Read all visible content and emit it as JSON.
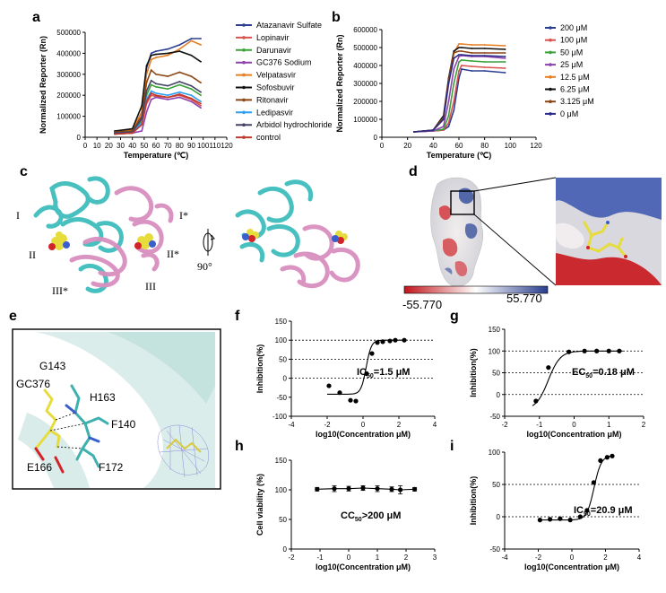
{
  "panels": {
    "a": "a",
    "b": "b",
    "c": "c",
    "d": "d",
    "e": "e",
    "f": "f",
    "g": "g",
    "h": "h",
    "i": "i"
  },
  "colors": {
    "protein_cyan": "#3fbdbd",
    "protein_pink": "#d98fbf",
    "ligand": "#e6dc3c",
    "esp_red": "#d2232a",
    "esp_blue": "#2f4a9a"
  },
  "chart_data": [
    {
      "panel": "a",
      "type": "line",
      "xlabel": "Temperature (℃)",
      "ylabel": "Normalized Reporter (Rn)",
      "xlim": [
        0,
        120
      ],
      "ylim": [
        0,
        500000
      ],
      "xticks": [
        "0",
        "10",
        "20",
        "30",
        "40",
        "50",
        "60",
        "70",
        "80",
        "90",
        "100",
        "110",
        "120"
      ],
      "yticks": [
        "0",
        "100000",
        "200000",
        "300000",
        "400000",
        "500000"
      ],
      "legend_position": "right",
      "series": [
        {
          "name": "Atazanavir Sulfate",
          "color": "#2c3e91",
          "x": [
            25,
            40,
            48,
            52,
            56,
            60,
            70,
            80,
            90,
            98
          ],
          "values": [
            20000,
            30000,
            120000,
            330000,
            400000,
            410000,
            420000,
            440000,
            470000,
            470000
          ]
        },
        {
          "name": "Lopinavir",
          "color": "#d9534f",
          "x": [
            25,
            40,
            48,
            52,
            56,
            60,
            70,
            80,
            90,
            98
          ],
          "values": [
            15000,
            20000,
            60000,
            160000,
            200000,
            195000,
            190000,
            200000,
            180000,
            150000
          ]
        },
        {
          "name": "Darunavir",
          "color": "#3aa13a",
          "x": [
            25,
            40,
            48,
            52,
            56,
            60,
            70,
            80,
            90,
            98
          ],
          "values": [
            20000,
            25000,
            80000,
            200000,
            250000,
            240000,
            230000,
            250000,
            230000,
            200000
          ]
        },
        {
          "name": "GC376 Sodium",
          "color": "#8e44ad",
          "x": [
            25,
            40,
            48,
            52,
            56,
            60,
            70,
            80,
            90,
            98
          ],
          "values": [
            15000,
            20000,
            30000,
            120000,
            180000,
            190000,
            180000,
            190000,
            170000,
            140000
          ]
        },
        {
          "name": "Velpatasvir",
          "color": "#e67e22",
          "x": [
            25,
            40,
            48,
            52,
            56,
            60,
            70,
            80,
            90,
            98
          ],
          "values": [
            25000,
            35000,
            120000,
            300000,
            370000,
            380000,
            390000,
            420000,
            460000,
            440000
          ]
        },
        {
          "name": "Sofosbuvir",
          "color": "#111111",
          "x": [
            25,
            40,
            48,
            52,
            56,
            60,
            70,
            80,
            90,
            98
          ],
          "values": [
            30000,
            40000,
            150000,
            340000,
            390000,
            395000,
            400000,
            410000,
            390000,
            360000
          ]
        },
        {
          "name": "Ritonavir",
          "color": "#8b4513",
          "x": [
            25,
            40,
            48,
            52,
            56,
            60,
            70,
            80,
            90,
            98
          ],
          "values": [
            25000,
            30000,
            100000,
            260000,
            320000,
            300000,
            290000,
            310000,
            290000,
            260000
          ]
        },
        {
          "name": "Ledipasvir",
          "color": "#2a9df4",
          "x": [
            25,
            40,
            48,
            52,
            56,
            60,
            70,
            80,
            90,
            98
          ],
          "values": [
            20000,
            25000,
            70000,
            180000,
            220000,
            210000,
            200000,
            215000,
            200000,
            170000
          ]
        },
        {
          "name": "Arbidol hydrochloride",
          "color": "#444466",
          "x": [
            25,
            40,
            48,
            52,
            56,
            60,
            70,
            80,
            90,
            98
          ],
          "values": [
            20000,
            25000,
            90000,
            220000,
            270000,
            255000,
            245000,
            265000,
            245000,
            215000
          ]
        },
        {
          "name": "control",
          "color": "#c0392b",
          "x": [
            25,
            40,
            48,
            52,
            56,
            60,
            70,
            80,
            90,
            98
          ],
          "values": [
            15000,
            20000,
            60000,
            170000,
            210000,
            200000,
            190000,
            205000,
            185000,
            160000
          ]
        }
      ]
    },
    {
      "panel": "b",
      "type": "line",
      "xlabel": "Temperature (℃)",
      "ylabel": "Normalized Reporter (Rn)",
      "xlim": [
        0,
        120
      ],
      "ylim": [
        0,
        600000
      ],
      "xticks": [
        "0",
        "20",
        "40",
        "60",
        "80",
        "100",
        "120"
      ],
      "yticks": [
        "0",
        "100000",
        "200000",
        "300000",
        "400000",
        "500000",
        "600000"
      ],
      "legend_position": "right",
      "series": [
        {
          "name": "200 μM",
          "color": "#2c3e91",
          "x": [
            25,
            40,
            48,
            52,
            56,
            60,
            62,
            70,
            80,
            96
          ],
          "values": [
            30000,
            35000,
            40000,
            60000,
            150000,
            330000,
            380000,
            370000,
            370000,
            360000
          ]
        },
        {
          "name": "100 μM",
          "color": "#d9534f",
          "x": [
            25,
            40,
            48,
            52,
            56,
            60,
            62,
            70,
            80,
            96
          ],
          "values": [
            30000,
            35000,
            40000,
            80000,
            200000,
            370000,
            400000,
            395000,
            390000,
            385000
          ]
        },
        {
          "name": "50 μM",
          "color": "#3aa13a",
          "x": [
            25,
            40,
            48,
            52,
            56,
            60,
            62,
            70,
            80,
            96
          ],
          "values": [
            30000,
            35000,
            45000,
            120000,
            300000,
            420000,
            430000,
            425000,
            420000,
            420000
          ]
        },
        {
          "name": "25 μM",
          "color": "#8e44ad",
          "x": [
            25,
            40,
            48,
            52,
            56,
            60,
            62,
            70,
            80,
            96
          ],
          "values": [
            30000,
            35000,
            60000,
            200000,
            380000,
            450000,
            455000,
            450000,
            450000,
            440000
          ]
        },
        {
          "name": "12.5 μM",
          "color": "#e67e22",
          "x": [
            25,
            40,
            48,
            52,
            56,
            60,
            62,
            70,
            80,
            96
          ],
          "values": [
            30000,
            40000,
            100000,
            300000,
            470000,
            520000,
            520000,
            515000,
            515000,
            510000
          ]
        },
        {
          "name": "6.25 μM",
          "color": "#111111",
          "x": [
            25,
            40,
            48,
            52,
            56,
            60,
            62,
            70,
            80,
            96
          ],
          "values": [
            30000,
            40000,
            120000,
            330000,
            480000,
            500000,
            500000,
            495000,
            495000,
            490000
          ]
        },
        {
          "name": "3.125 μM",
          "color": "#8b4513",
          "x": [
            25,
            40,
            48,
            52,
            56,
            60,
            62,
            70,
            80,
            96
          ],
          "values": [
            30000,
            40000,
            110000,
            320000,
            470000,
            480000,
            480000,
            470000,
            470000,
            470000
          ]
        },
        {
          "name": "0 μM",
          "color": "#2a2a8a",
          "x": [
            25,
            40,
            48,
            52,
            56,
            60,
            62,
            70,
            80,
            96
          ],
          "values": [
            30000,
            40000,
            100000,
            300000,
            440000,
            460000,
            460000,
            455000,
            455000,
            450000
          ]
        }
      ]
    },
    {
      "panel": "f",
      "type": "scatter",
      "xlabel": "log10(Concentration μM)",
      "ylabel": "Inhibition(%)",
      "xlim": [
        -4,
        4
      ],
      "ylim": [
        -100,
        150
      ],
      "xticks": [
        "-4",
        "-2",
        "0",
        "2",
        "4"
      ],
      "yticks": [
        "-100",
        "-50",
        "0",
        "50",
        "100",
        "150"
      ],
      "hlines": [
        0,
        50,
        100
      ],
      "annotation": {
        "prefix": "IC",
        "sub": "50",
        "suffix": "=1.5 μM"
      },
      "x": [
        -1.9,
        -1.3,
        -0.7,
        -0.4,
        0.2,
        0.5,
        0.8,
        1.1,
        1.5,
        1.8,
        2.3
      ],
      "values": [
        -20,
        -38,
        -58,
        -60,
        12,
        65,
        94,
        96,
        98,
        100,
        100
      ],
      "fit": {
        "bottom": -42,
        "top": 100,
        "x50": 0.176,
        "hill": 3
      }
    },
    {
      "panel": "g",
      "type": "scatter",
      "xlabel": "log10(Concentration μM)",
      "ylabel": "Inhibition(%)",
      "xlim": [
        -2,
        2
      ],
      "ylim": [
        -50,
        150
      ],
      "xticks": [
        "-2",
        "-1",
        "0",
        "1",
        "2"
      ],
      "yticks": [
        "-50",
        "0",
        "50",
        "100",
        "150"
      ],
      "hlines": [
        0,
        50,
        100
      ],
      "annotation": {
        "prefix": "EC",
        "sub": "50",
        "suffix": "=0.18 μM"
      },
      "x": [
        -1.1,
        -0.74,
        -0.15,
        0.3,
        0.65,
        1.0,
        1.3
      ],
      "values": [
        -15,
        62,
        98,
        100,
        100,
        100,
        100
      ],
      "fit": {
        "bottom": -35,
        "top": 100,
        "x50": -0.745,
        "hill": 2.5
      }
    },
    {
      "panel": "h",
      "type": "scatter",
      "xlabel": "log10(Concentration μM)",
      "ylabel": "Cell viability (%)",
      "xlim": [
        -2,
        3
      ],
      "ylim": [
        0,
        150
      ],
      "xticks": [
        "-2",
        "-1",
        "0",
        "1",
        "2",
        "3"
      ],
      "yticks": [
        "0",
        "50",
        "100",
        "150"
      ],
      "annotation": {
        "prefix": "CC",
        "sub": "50",
        "suffix": ">200 μM"
      },
      "x": [
        -1.1,
        -0.5,
        0.0,
        0.5,
        1.0,
        1.5,
        1.8,
        2.3
      ],
      "values": [
        101,
        102,
        102,
        103,
        102,
        101,
        100,
        101
      ],
      "errors": [
        3,
        5,
        4,
        4,
        5,
        4,
        7,
        3
      ]
    },
    {
      "panel": "i",
      "type": "scatter",
      "xlabel": "log10(Concentration μM)",
      "ylabel": "Inhibition(%)",
      "xlim": [
        -4,
        4
      ],
      "ylim": [
        -50,
        100
      ],
      "xticks": [
        "-4",
        "-2",
        "0",
        "2",
        "4"
      ],
      "yticks": [
        "-50",
        "0",
        "50",
        "100"
      ],
      "hlines": [
        0,
        50
      ],
      "annotation": {
        "prefix": "IC",
        "sub": "50",
        "suffix": "=20.9 μM"
      },
      "x": [
        -1.9,
        -1.3,
        -0.7,
        -0.1,
        0.5,
        0.9,
        1.3,
        1.7,
        2.1,
        2.4
      ],
      "values": [
        -5,
        -4,
        -3,
        -5,
        0,
        10,
        53,
        87,
        92,
        94
      ],
      "fit": {
        "bottom": -5,
        "top": 95,
        "x50": 1.32,
        "hill": 2
      }
    }
  ],
  "panel_c": {
    "labels": {
      "I": "I",
      "II": "II",
      "III_star": "III*",
      "I_star": "I*",
      "II_star": "II*",
      "III": "III",
      "rotation": "90°"
    }
  },
  "panel_d": {
    "min": "-55.770",
    "max": "55.770"
  },
  "panel_e": {
    "residues": {
      "G143": "G143",
      "GC376": "GC376",
      "H163": "H163",
      "F140": "F140",
      "E166": "E166",
      "F172": "F172"
    }
  }
}
